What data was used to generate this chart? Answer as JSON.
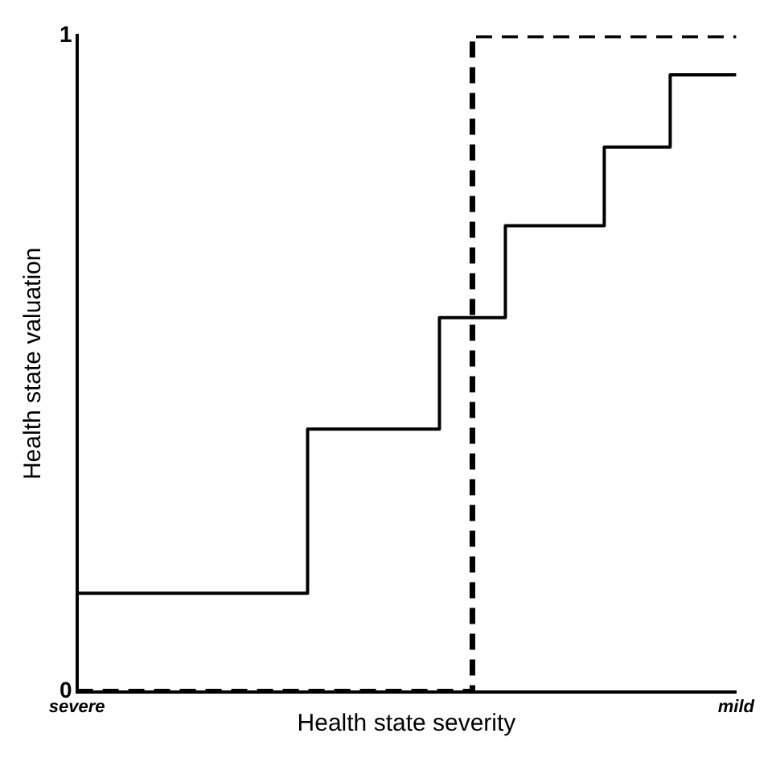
{
  "chart_data": {
    "type": "step",
    "xlabel": "Health state severity",
    "ylabel": "Health state valuation",
    "categories": [
      "severe",
      null,
      null,
      null,
      null,
      null,
      null,
      null,
      null,
      null,
      null,
      null,
      null,
      null,
      null,
      null,
      null,
      null,
      null,
      null,
      "mild"
    ],
    "ylim": [
      0,
      1
    ],
    "yticks": [
      0,
      1
    ],
    "grid": false,
    "legend": false,
    "series": [
      {
        "color": "#000000",
        "line_style": "solid",
        "values": [
          0.15,
          0.15,
          0.15,
          0.15,
          0.15,
          0.15,
          0.15,
          0.4,
          0.4,
          0.4,
          0.4,
          0.57,
          0.57,
          0.71,
          0.71,
          0.71,
          0.83,
          0.83,
          0.94,
          0.94,
          0.94
        ]
      },
      {
        "color": "#000000",
        "line_style": "dashed",
        "values": [
          0,
          0,
          0,
          0,
          0,
          0,
          0,
          0,
          0,
          0,
          0,
          0,
          1,
          1,
          1,
          1,
          1,
          1,
          1,
          1,
          1
        ]
      }
    ]
  }
}
